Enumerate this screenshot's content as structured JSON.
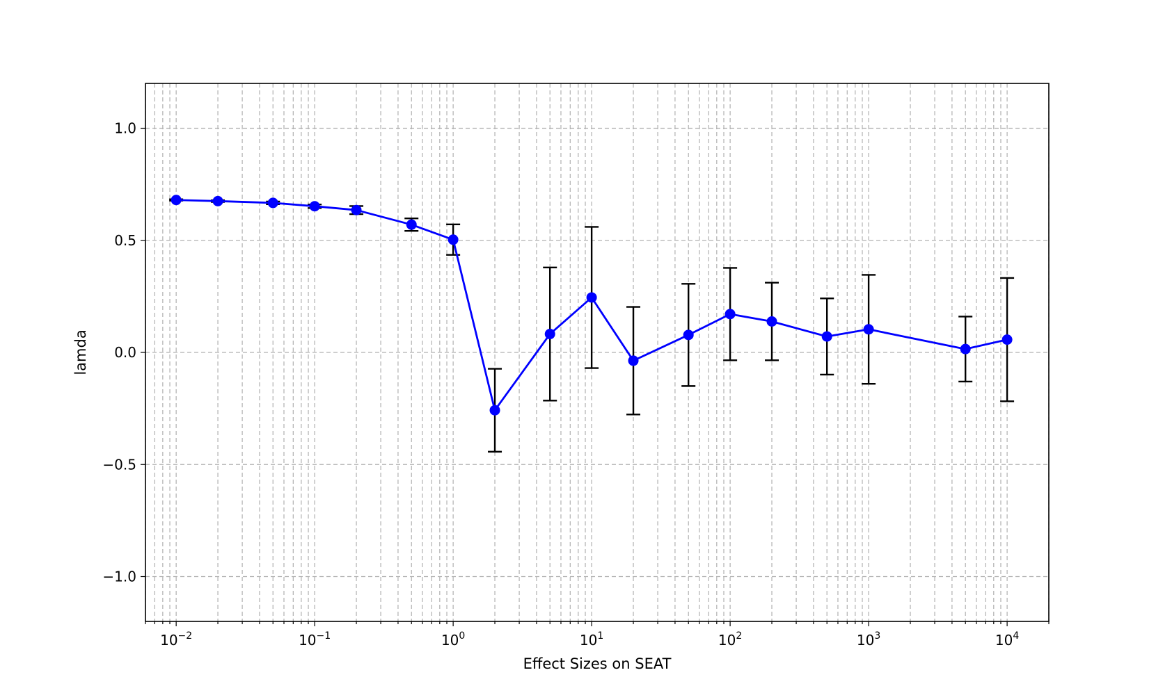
{
  "chart_data": {
    "type": "line",
    "title": "",
    "xlabel": "Effect Sizes on SEAT",
    "ylabel": "lamda",
    "xscale": "log",
    "xlim": [
      0.006,
      20000
    ],
    "ylim": [
      -1.2,
      1.2
    ],
    "grid": {
      "major": true,
      "minor_x": true,
      "style": "dashed"
    },
    "x_ticks": [
      {
        "value": 0.01,
        "base": "10",
        "exp": "−2"
      },
      {
        "value": 0.1,
        "base": "10",
        "exp": "−1"
      },
      {
        "value": 1,
        "base": "10",
        "exp": "0"
      },
      {
        "value": 10,
        "base": "10",
        "exp": "1"
      },
      {
        "value": 100,
        "base": "10",
        "exp": "2"
      },
      {
        "value": 1000,
        "base": "10",
        "exp": "3"
      },
      {
        "value": 10000,
        "base": "10",
        "exp": "4"
      }
    ],
    "y_ticks": [
      {
        "value": 1.0,
        "label": "1.0"
      },
      {
        "value": 0.5,
        "label": "0.5"
      },
      {
        "value": 0.0,
        "label": "0.0"
      },
      {
        "value": -0.5,
        "label": "−0.5"
      },
      {
        "value": -1.0,
        "label": "−1.0"
      }
    ],
    "series": [
      {
        "color": "#0000ff",
        "errorbar_color": "#000000",
        "x": [
          0.01,
          0.02,
          0.05,
          0.1,
          0.2,
          0.5,
          1,
          2,
          5,
          10,
          20,
          50,
          100,
          200,
          500,
          1000,
          5000,
          10000
        ],
        "y": [
          0.68,
          0.675,
          0.667,
          0.652,
          0.635,
          0.57,
          0.503,
          -0.258,
          0.082,
          0.245,
          -0.037,
          0.078,
          0.171,
          0.138,
          0.071,
          0.103,
          0.015,
          0.057
        ],
        "yerr": [
          0.003,
          0.004,
          0.006,
          0.008,
          0.018,
          0.028,
          0.068,
          0.185,
          0.297,
          0.315,
          0.24,
          0.228,
          0.206,
          0.173,
          0.17,
          0.243,
          0.145,
          0.275
        ]
      }
    ]
  }
}
